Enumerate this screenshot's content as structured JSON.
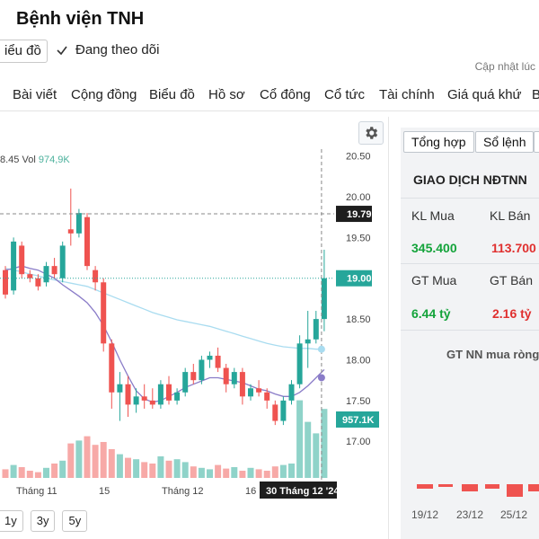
{
  "header": {
    "title": "Bệnh viện TNH",
    "chart_button": "iểu đồ",
    "follow_label": "Đang theo dõi",
    "update_note": "Cập nhật lúc"
  },
  "nav": {
    "items": [
      "Bài viết",
      "Cộng đồng",
      "Biểu đồ",
      "Hồ sơ",
      "Cổ đông",
      "Cổ tức",
      "Tài chính",
      "Giá quá khứ",
      "B"
    ]
  },
  "chart": {
    "ohlc_fragment": "8.45",
    "vol_label": "Vol",
    "vol_value": "974,9K",
    "price_axis": [
      "20.50",
      "20.00",
      "19.50",
      "19.00",
      "18.50",
      "18.00",
      "17.50",
      "17.00"
    ],
    "crosshair_price": "19.79",
    "last_price": "19.00",
    "last_volume": "957.1K",
    "x_labels": [
      {
        "text": "Tháng 11"
      },
      {
        "text": "15"
      },
      {
        "text": "Tháng 12"
      },
      {
        "text": "16"
      }
    ],
    "crosshair_date": "30 Tháng 12 '24",
    "colors": {
      "up": "#26a69a",
      "down": "#ef5350",
      "vol_up": "#8fd3c9",
      "vol_down": "#f7a9a7",
      "ma_fast": "#8a7cc8",
      "ma_slow": "#a9dcf0"
    },
    "range_buttons": [
      "1y",
      "3y",
      "5y"
    ]
  },
  "chart_data": {
    "type": "candlestick",
    "y_range": [
      16.65,
      20.65
    ],
    "candles": [
      [
        19.1,
        19.15,
        18.75,
        18.8
      ],
      [
        18.85,
        19.5,
        18.8,
        19.45
      ],
      [
        19.4,
        19.45,
        19.0,
        19.05
      ],
      [
        19.05,
        19.1,
        18.95,
        19.0
      ],
      [
        19.0,
        19.05,
        18.85,
        18.9
      ],
      [
        18.95,
        19.2,
        18.9,
        19.15
      ],
      [
        19.15,
        19.25,
        19.0,
        19.05
      ],
      [
        19.0,
        19.45,
        18.95,
        19.4
      ],
      [
        19.6,
        20.1,
        19.4,
        19.55
      ],
      [
        19.55,
        19.85,
        19.5,
        19.8
      ],
      [
        19.75,
        19.8,
        19.1,
        19.15
      ],
      [
        19.1,
        19.15,
        18.85,
        18.95
      ],
      [
        18.95,
        19.0,
        18.1,
        18.2
      ],
      [
        18.2,
        18.25,
        17.4,
        17.6
      ],
      [
        17.6,
        17.85,
        17.25,
        17.7
      ],
      [
        17.7,
        17.8,
        17.3,
        17.45
      ],
      [
        17.45,
        17.65,
        17.35,
        17.55
      ],
      [
        17.55,
        17.7,
        17.4,
        17.5
      ],
      [
        17.5,
        17.65,
        17.4,
        17.45
      ],
      [
        17.45,
        17.75,
        17.4,
        17.7
      ],
      [
        17.7,
        17.8,
        17.45,
        17.5
      ],
      [
        17.5,
        17.65,
        17.45,
        17.6
      ],
      [
        17.6,
        17.9,
        17.55,
        17.85
      ],
      [
        17.85,
        17.95,
        17.7,
        17.75
      ],
      [
        17.75,
        18.05,
        17.7,
        18.0
      ],
      [
        18.0,
        18.1,
        17.9,
        18.05
      ],
      [
        18.05,
        18.15,
        17.85,
        17.9
      ],
      [
        17.9,
        17.95,
        17.6,
        17.7
      ],
      [
        17.7,
        17.9,
        17.65,
        17.85
      ],
      [
        17.85,
        17.9,
        17.45,
        17.55
      ],
      [
        17.55,
        17.7,
        17.5,
        17.65
      ],
      [
        17.65,
        17.75,
        17.55,
        17.6
      ],
      [
        17.6,
        17.65,
        17.4,
        17.5
      ],
      [
        17.45,
        17.5,
        17.2,
        17.25
      ],
      [
        17.25,
        17.55,
        17.2,
        17.5
      ],
      [
        17.5,
        17.75,
        17.45,
        17.7
      ],
      [
        17.7,
        18.3,
        17.65,
        18.2
      ],
      [
        18.2,
        18.6,
        17.9,
        18.25
      ],
      [
        18.25,
        18.6,
        18.2,
        18.5
      ],
      [
        18.5,
        19.35,
        18.35,
        19.0
      ]
    ],
    "volume": [
      0.12,
      0.18,
      0.15,
      0.1,
      0.08,
      0.14,
      0.2,
      0.24,
      0.48,
      0.52,
      0.58,
      0.46,
      0.5,
      0.4,
      0.33,
      0.28,
      0.26,
      0.22,
      0.2,
      0.3,
      0.24,
      0.26,
      0.22,
      0.16,
      0.14,
      0.12,
      0.18,
      0.13,
      0.15,
      0.1,
      0.14,
      0.12,
      0.1,
      0.16,
      0.18,
      0.2,
      1.08,
      0.78,
      0.62,
      0.96
    ],
    "ma_fast": [
      19.1,
      19.12,
      19.15,
      19.12,
      19.1,
      19.05,
      19.0,
      18.92,
      18.85,
      18.78,
      18.7,
      18.58,
      18.42,
      18.22,
      18.0,
      17.8,
      17.62,
      17.52,
      17.48,
      17.5,
      17.55,
      17.6,
      17.66,
      17.7,
      17.74,
      17.78,
      17.78,
      17.76,
      17.74,
      17.72,
      17.68,
      17.64,
      17.62,
      17.58,
      17.55,
      17.55,
      17.6,
      17.68,
      17.78,
      17.88
    ],
    "ma_slow": [
      19.12,
      19.1,
      19.08,
      19.05,
      19.03,
      19.0,
      18.98,
      18.96,
      18.94,
      18.92,
      18.9,
      18.86,
      18.82,
      18.78,
      18.74,
      18.7,
      18.66,
      18.62,
      18.58,
      18.55,
      18.52,
      18.49,
      18.47,
      18.45,
      18.43,
      18.41,
      18.38,
      18.35,
      18.32,
      18.29,
      18.26,
      18.23,
      18.2,
      18.18,
      18.16,
      18.15,
      18.14,
      18.14,
      18.13,
      18.13
    ]
  },
  "panel": {
    "tabs": [
      "Tổng hợp",
      "Sổ lệnh"
    ],
    "heading": "GIAO DỊCH NĐTNN",
    "kl_mua_label": "KL Mua",
    "kl_ban_label": "KL Bán",
    "kl_mua": "345.400",
    "kl_ban": "113.700",
    "gt_mua_label": "GT Mua",
    "gt_ban_label": "GT Bán",
    "gt_mua": "6.44 tỷ",
    "gt_ban": "2.16 tỷ",
    "nn_title": "GT NN mua ròng",
    "dates": [
      "19/12",
      "23/12",
      "25/12"
    ]
  }
}
